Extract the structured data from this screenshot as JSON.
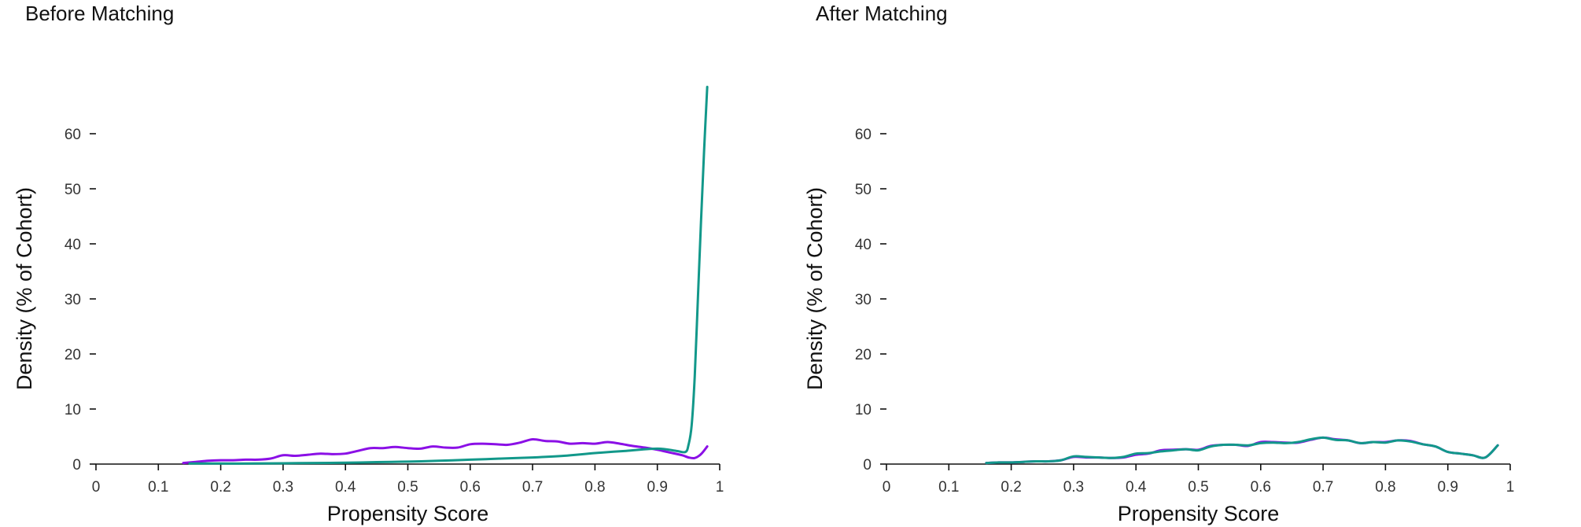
{
  "chart_data": [
    {
      "type": "line",
      "title": "Before Matching",
      "xlabel": "Propensity Score",
      "ylabel": "Density (% of Cohort)",
      "xlim": [
        0,
        1
      ],
      "ylim": [
        0,
        70
      ],
      "xticks": [
        "0",
        "0.1",
        "0.2",
        "0.3",
        "0.4",
        "0.5",
        "0.6",
        "0.7",
        "0.8",
        "0.9",
        "1"
      ],
      "yticks": [
        "0",
        "10",
        "20",
        "30",
        "40",
        "50",
        "60"
      ],
      "grid": false,
      "series": [
        {
          "color": "#8b10e6",
          "x": [
            0.14,
            0.16,
            0.18,
            0.2,
            0.22,
            0.24,
            0.26,
            0.28,
            0.3,
            0.32,
            0.34,
            0.36,
            0.38,
            0.4,
            0.42,
            0.44,
            0.46,
            0.48,
            0.5,
            0.52,
            0.54,
            0.56,
            0.58,
            0.6,
            0.62,
            0.64,
            0.66,
            0.68,
            0.7,
            0.72,
            0.74,
            0.76,
            0.78,
            0.8,
            0.82,
            0.84,
            0.86,
            0.88,
            0.9,
            0.92,
            0.94,
            0.95,
            0.96,
            0.97,
            0.98
          ],
          "y": [
            0.2,
            0.4,
            0.6,
            0.7,
            0.7,
            0.8,
            0.8,
            1.0,
            1.6,
            1.5,
            1.7,
            1.9,
            1.8,
            1.9,
            2.4,
            2.9,
            2.9,
            3.1,
            2.9,
            2.8,
            3.2,
            3.0,
            3.0,
            3.6,
            3.7,
            3.6,
            3.5,
            3.9,
            4.5,
            4.2,
            4.1,
            3.7,
            3.8,
            3.7,
            4.0,
            3.7,
            3.3,
            3.0,
            2.6,
            2.1,
            1.6,
            1.2,
            1.1,
            1.8,
            3.2
          ]
        },
        {
          "color": "#12988a",
          "x": [
            0.15,
            0.2,
            0.25,
            0.3,
            0.35,
            0.4,
            0.45,
            0.5,
            0.55,
            0.6,
            0.65,
            0.7,
            0.75,
            0.8,
            0.85,
            0.9,
            0.93,
            0.945,
            0.95,
            0.955,
            0.96,
            0.965,
            0.97,
            0.975,
            0.98
          ],
          "y": [
            0.1,
            0.1,
            0.1,
            0.15,
            0.2,
            0.25,
            0.35,
            0.45,
            0.6,
            0.8,
            1.0,
            1.2,
            1.5,
            2.0,
            2.4,
            2.8,
            2.4,
            2.2,
            3.5,
            7.0,
            16.0,
            30.0,
            44.0,
            57.0,
            68.5
          ]
        }
      ]
    },
    {
      "type": "line",
      "title": "After Matching",
      "xlabel": "Propensity Score",
      "ylabel": "Density (% of Cohort)",
      "xlim": [
        0,
        1
      ],
      "ylim": [
        0,
        70
      ],
      "xticks": [
        "0",
        "0.1",
        "0.2",
        "0.3",
        "0.4",
        "0.5",
        "0.6",
        "0.7",
        "0.8",
        "0.9",
        "1"
      ],
      "yticks": [
        "0",
        "10",
        "20",
        "30",
        "40",
        "50",
        "60"
      ],
      "grid": false,
      "series": [
        {
          "color": "#8b10e6",
          "x": [
            0.16,
            0.18,
            0.2,
            0.22,
            0.24,
            0.26,
            0.28,
            0.3,
            0.32,
            0.34,
            0.36,
            0.38,
            0.4,
            0.42,
            0.44,
            0.46,
            0.48,
            0.5,
            0.52,
            0.54,
            0.56,
            0.58,
            0.6,
            0.62,
            0.64,
            0.66,
            0.68,
            0.7,
            0.72,
            0.74,
            0.76,
            0.78,
            0.8,
            0.82,
            0.84,
            0.86,
            0.88,
            0.9,
            0.92,
            0.94,
            0.96,
            0.98
          ],
          "y": [
            0.2,
            0.3,
            0.3,
            0.4,
            0.5,
            0.5,
            0.7,
            1.3,
            1.2,
            1.2,
            1.1,
            1.2,
            1.7,
            1.9,
            2.5,
            2.6,
            2.7,
            2.6,
            3.3,
            3.5,
            3.5,
            3.3,
            4.0,
            4.0,
            3.9,
            3.9,
            4.4,
            4.8,
            4.5,
            4.3,
            3.8,
            4.0,
            4.0,
            4.3,
            4.2,
            3.6,
            3.2,
            2.2,
            1.9,
            1.6,
            1.2,
            3.4
          ]
        },
        {
          "color": "#12988a",
          "x": [
            0.16,
            0.18,
            0.2,
            0.22,
            0.24,
            0.26,
            0.28,
            0.3,
            0.32,
            0.34,
            0.36,
            0.38,
            0.4,
            0.42,
            0.44,
            0.46,
            0.48,
            0.5,
            0.52,
            0.54,
            0.56,
            0.58,
            0.6,
            0.62,
            0.64,
            0.66,
            0.68,
            0.7,
            0.72,
            0.74,
            0.76,
            0.78,
            0.8,
            0.82,
            0.84,
            0.86,
            0.88,
            0.9,
            0.92,
            0.94,
            0.96,
            0.98
          ],
          "y": [
            0.2,
            0.3,
            0.3,
            0.4,
            0.5,
            0.5,
            0.7,
            1.4,
            1.3,
            1.2,
            1.1,
            1.3,
            1.9,
            2.0,
            2.3,
            2.5,
            2.7,
            2.5,
            3.2,
            3.5,
            3.5,
            3.4,
            3.8,
            3.9,
            3.8,
            4.0,
            4.5,
            4.8,
            4.4,
            4.3,
            3.8,
            4.0,
            3.9,
            4.3,
            4.1,
            3.6,
            3.2,
            2.2,
            1.9,
            1.6,
            1.2,
            3.4
          ]
        }
      ]
    }
  ]
}
